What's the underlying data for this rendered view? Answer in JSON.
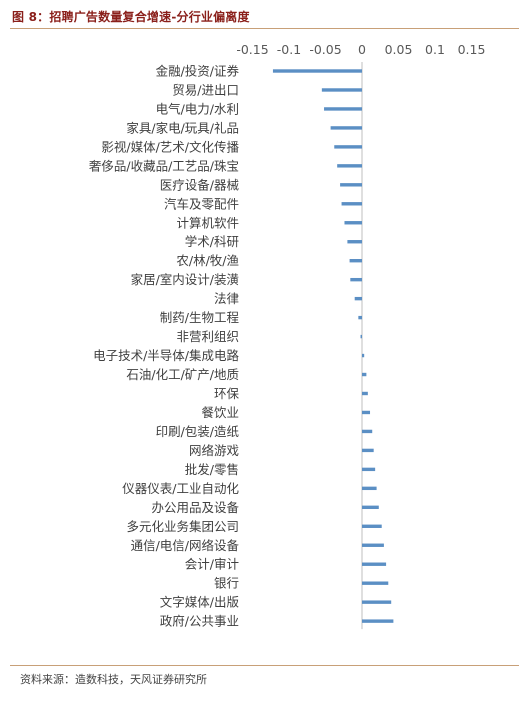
{
  "header": {
    "title": "图 8：招聘广告数量复合增速-分行业偏离度"
  },
  "footer": {
    "source": "资料来源：造数科技，天风证券研究所"
  },
  "colors": {
    "bar": "#5b8fc4",
    "axis": "#bfbfbf",
    "title": "#8a1f1a"
  },
  "chart_data": {
    "type": "bar",
    "orientation": "horizontal",
    "xlim": [
      -0.15,
      0.15
    ],
    "x_ticks": [
      "-0.15",
      "-0.1",
      "-0.05",
      "0",
      "0.05",
      "0.1",
      "0.15"
    ],
    "grid": false,
    "legend": "none",
    "categories": [
      "金融/投资/证券",
      "贸易/进出口",
      "电气/电力/水利",
      "家具/家电/玩具/礼品",
      "影视/媒体/艺术/文化传播",
      "奢侈品/收藏品/工艺品/珠宝",
      "医疗设备/器械",
      "汽车及零配件",
      "计算机软件",
      "学术/科研",
      "农/林/牧/渔",
      "家居/室内设计/装潢",
      "法律",
      "制药/生物工程",
      "非营利组织",
      "电子技术/半导体/集成电路",
      "石油/化工/矿产/地质",
      "环保",
      "餐饮业",
      "印刷/包装/造纸",
      "网络游戏",
      "批发/零售",
      "仪器仪表/工业自动化",
      "办公用品及设备",
      "多元化业务集团公司",
      "通信/电信/网络设备",
      "会计/审计",
      "银行",
      "文字媒体/出版",
      "政府/公共事业"
    ],
    "values": [
      -0.122,
      -0.055,
      -0.052,
      -0.043,
      -0.038,
      -0.034,
      -0.03,
      -0.028,
      -0.024,
      -0.02,
      -0.017,
      -0.016,
      -0.01,
      -0.005,
      -0.002,
      0.003,
      0.006,
      0.008,
      0.011,
      0.014,
      0.016,
      0.018,
      0.02,
      0.023,
      0.027,
      0.03,
      0.033,
      0.036,
      0.04,
      0.043
    ]
  }
}
